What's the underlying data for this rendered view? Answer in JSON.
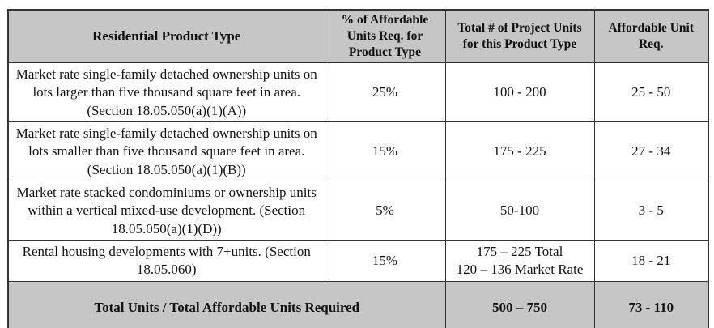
{
  "table": {
    "columns": [
      "Residential Product Type",
      "% of Affordable Units Req. for Product Type",
      "Total # of Project Units for this Product Type",
      "Affordable Unit Req."
    ],
    "rows": [
      {
        "product": "Market rate single-family detached ownership units on lots larger than five thousand square feet in area. (Section 18.05.050(a)(1)(A))",
        "pct_required": "25%",
        "total_project_units": "100 - 200",
        "affordable_units_req": "25 - 50"
      },
      {
        "product": "Market rate single-family detached ownership units on lots smaller than five thousand square feet in area. (Section 18.05.050(a)(1)(B))",
        "pct_required": "15%",
        "total_project_units": "175 - 225",
        "affordable_units_req": "27 - 34"
      },
      {
        "product": "Market rate stacked condominiums or ownership units within a vertical mixed-use development. (Section 18.05.050(a)(1)(D))",
        "pct_required": "5%",
        "total_project_units": "50-100",
        "affordable_units_req": "3 - 5"
      },
      {
        "product": "Rental housing developments with 7+units. (Section 18.05.060)",
        "pct_required": "15%",
        "total_project_units_line1": "175 – 225 Total",
        "total_project_units_line2": "120 – 136 Market Rate",
        "affordable_units_req": "18 - 21"
      }
    ],
    "footer": {
      "label": "Total Units / Total Affordable Units Required",
      "total_project_units": "500 – 750",
      "affordable_units_req": "73 - 110"
    },
    "colors": {
      "header_bg": "#c6c6c6",
      "border": "#333333",
      "row_bg": "#ffffff"
    }
  }
}
